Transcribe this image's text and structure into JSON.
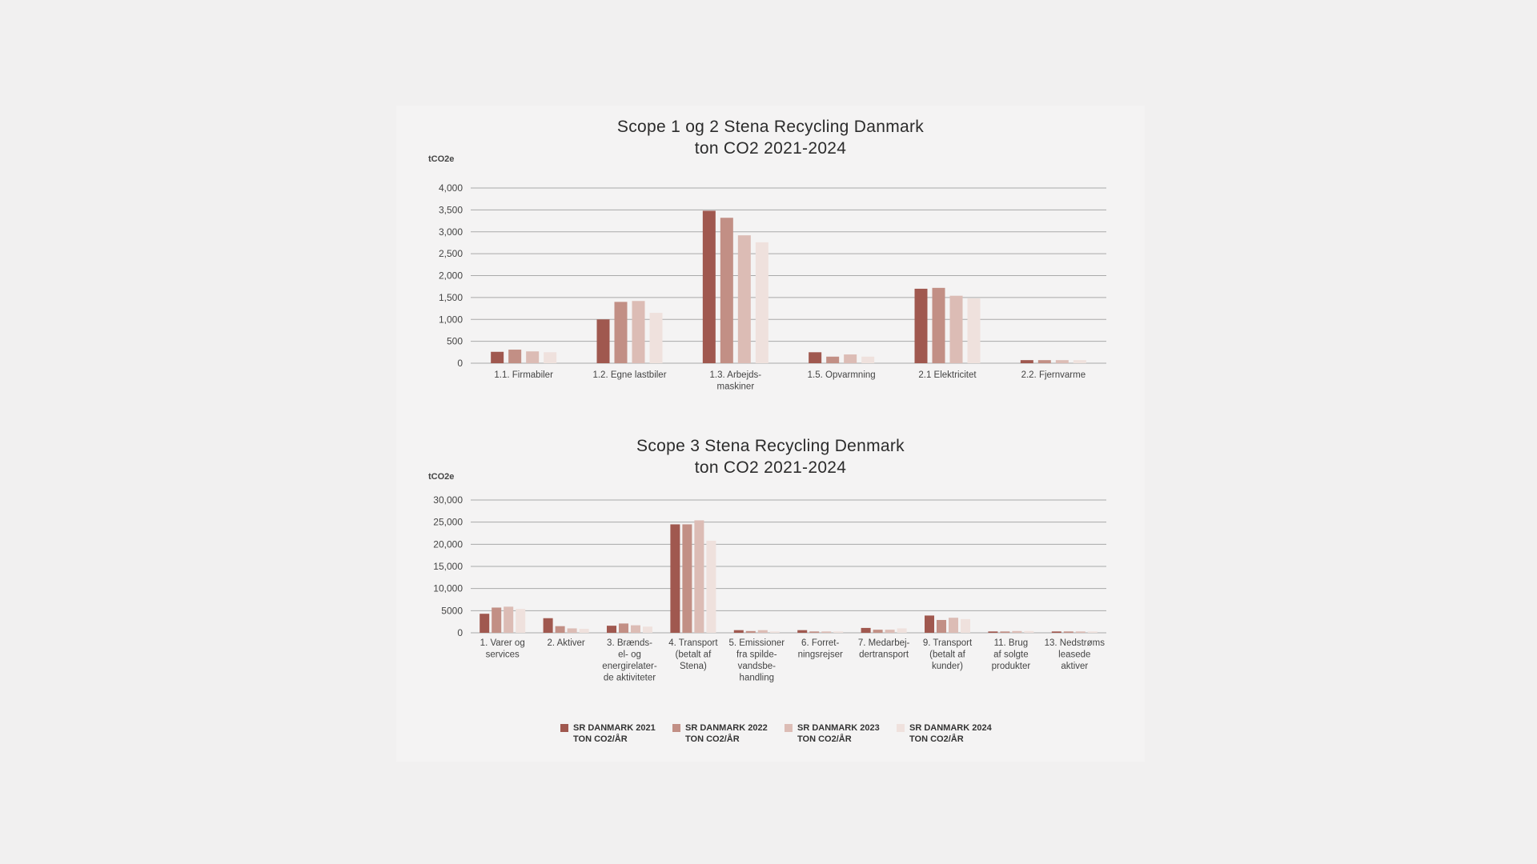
{
  "colors": [
    "#a0584f",
    "#c28f85",
    "#dcbcb5",
    "#efe1dd"
  ],
  "legend": [
    {
      "line1": "SR DANMARK 2021",
      "line2": "TON CO2/ÅR"
    },
    {
      "line1": "SR DANMARK 2022",
      "line2": "TON CO2/ÅR"
    },
    {
      "line1": "SR DANMARK 2023",
      "line2": "TON CO2/ÅR"
    },
    {
      "line1": "SR DANMARK 2024",
      "line2": "TON CO2/ÅR"
    }
  ],
  "chart_data": [
    {
      "type": "bar",
      "title_line1": "Scope 1 og 2 Stena Recycling Danmark",
      "title_line2": "ton CO2 2021-2024",
      "ylabel": "tCO2e",
      "ylim": [
        0,
        4000
      ],
      "yticks": [
        0,
        500,
        1000,
        1500,
        2000,
        2500,
        3000,
        3500,
        4000
      ],
      "ytick_labels": [
        "0",
        "500",
        "1,000",
        "1,500",
        "2,000",
        "2,500",
        "3,000",
        "3,500",
        "4,000"
      ],
      "categories": [
        [
          "1.1. Firmabiler"
        ],
        [
          "1.2. Egne lastbiler"
        ],
        [
          "1.3. Arbejds-",
          "maskiner"
        ],
        [
          "1.5. Opvarmning"
        ],
        [
          "2.1 Elektricitet"
        ],
        [
          "2.2. Fjernvarme"
        ]
      ],
      "series": [
        {
          "name": "SR DANMARK 2021 TON CO2/ÅR",
          "values": [
            260,
            1000,
            3480,
            250,
            1700,
            70
          ]
        },
        {
          "name": "SR DANMARK 2022 TON CO2/ÅR",
          "values": [
            310,
            1400,
            3320,
            150,
            1720,
            70
          ]
        },
        {
          "name": "SR DANMARK 2023 TON CO2/ÅR",
          "values": [
            270,
            1420,
            2920,
            200,
            1540,
            70
          ]
        },
        {
          "name": "SR DANMARK 2024 TON CO2/ÅR",
          "values": [
            250,
            1150,
            2760,
            150,
            1480,
            70
          ]
        }
      ]
    },
    {
      "type": "bar",
      "title_line1": "Scope 3 Stena Recycling Denmark",
      "title_line2": "ton CO2 2021-2024",
      "ylabel": "tCO2e",
      "ylim": [
        0,
        30000
      ],
      "yticks": [
        0,
        5000,
        10000,
        15000,
        20000,
        25000,
        30000
      ],
      "ytick_labels": [
        "0",
        "5000",
        "10,000",
        "15,000",
        "20,000",
        "25,000",
        "30,000"
      ],
      "categories": [
        [
          "1. Varer og",
          "services"
        ],
        [
          "2. Aktiver"
        ],
        [
          "3. Brænds-",
          "el- og",
          "energirelater-",
          "de aktiviteter"
        ],
        [
          "4. Transport",
          "(betalt af",
          "Stena)"
        ],
        [
          "5. Emissioner",
          "fra spilde-",
          "vandsbe-",
          "handling"
        ],
        [
          "6. Forret-",
          "ningsrejser"
        ],
        [
          "7. Medarbej-",
          "dertransport"
        ],
        [
          "9. Transport",
          "(betalt af",
          "kunder)"
        ],
        [
          "11. Brug",
          "af solgte",
          "produkter"
        ],
        [
          "13. Nedstrøms",
          "leasede",
          "aktiver"
        ]
      ],
      "series": [
        {
          "name": "SR DANMARK 2021 TON CO2/ÅR",
          "values": [
            4300,
            3300,
            1600,
            24500,
            600,
            600,
            1100,
            3900,
            300,
            300
          ]
        },
        {
          "name": "SR DANMARK 2022 TON CO2/ÅR",
          "values": [
            5700,
            1500,
            2100,
            24500,
            400,
            300,
            700,
            2900,
            300,
            300
          ]
        },
        {
          "name": "SR DANMARK 2023 TON CO2/ÅR",
          "values": [
            5900,
            1000,
            1700,
            25400,
            600,
            300,
            700,
            3400,
            400,
            300
          ]
        },
        {
          "name": "SR DANMARK 2024 TON CO2/ÅR",
          "values": [
            5400,
            900,
            1400,
            20800,
            300,
            300,
            1000,
            3100,
            400,
            300
          ]
        }
      ]
    }
  ]
}
